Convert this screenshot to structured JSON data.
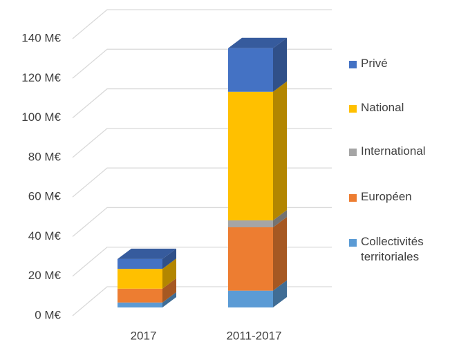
{
  "chart_data": {
    "type": "bar3d_stacked",
    "categories": [
      "2017",
      "2011-2017"
    ],
    "series": [
      {
        "name": "Collectivités territoriales",
        "color": "#5b9bd5",
        "values": [
          2.5,
          8.5
        ]
      },
      {
        "name": "Européen",
        "color": "#ed7d31",
        "values": [
          7,
          32
        ]
      },
      {
        "name": "International",
        "color": "#a5a5a5",
        "values": [
          0,
          3.5
        ]
      },
      {
        "name": "National",
        "color": "#ffc000",
        "values": [
          10,
          65
        ]
      },
      {
        "name": "Privé",
        "color": "#4472c4",
        "values": [
          5,
          22
        ]
      }
    ],
    "ylim": [
      0,
      140
    ],
    "yticks": [
      {
        "value": 0,
        "label": "0 M€"
      },
      {
        "value": 20,
        "label": "20 M€"
      },
      {
        "value": 40,
        "label": "40 M€"
      },
      {
        "value": 60,
        "label": "60 M€"
      },
      {
        "value": 80,
        "label": "80 M€"
      },
      {
        "value": 100,
        "label": "100 M€"
      },
      {
        "value": 120,
        "label": "120 M€"
      },
      {
        "value": 140,
        "label": "140 M€"
      }
    ],
    "grid": true,
    "legend": "right"
  }
}
